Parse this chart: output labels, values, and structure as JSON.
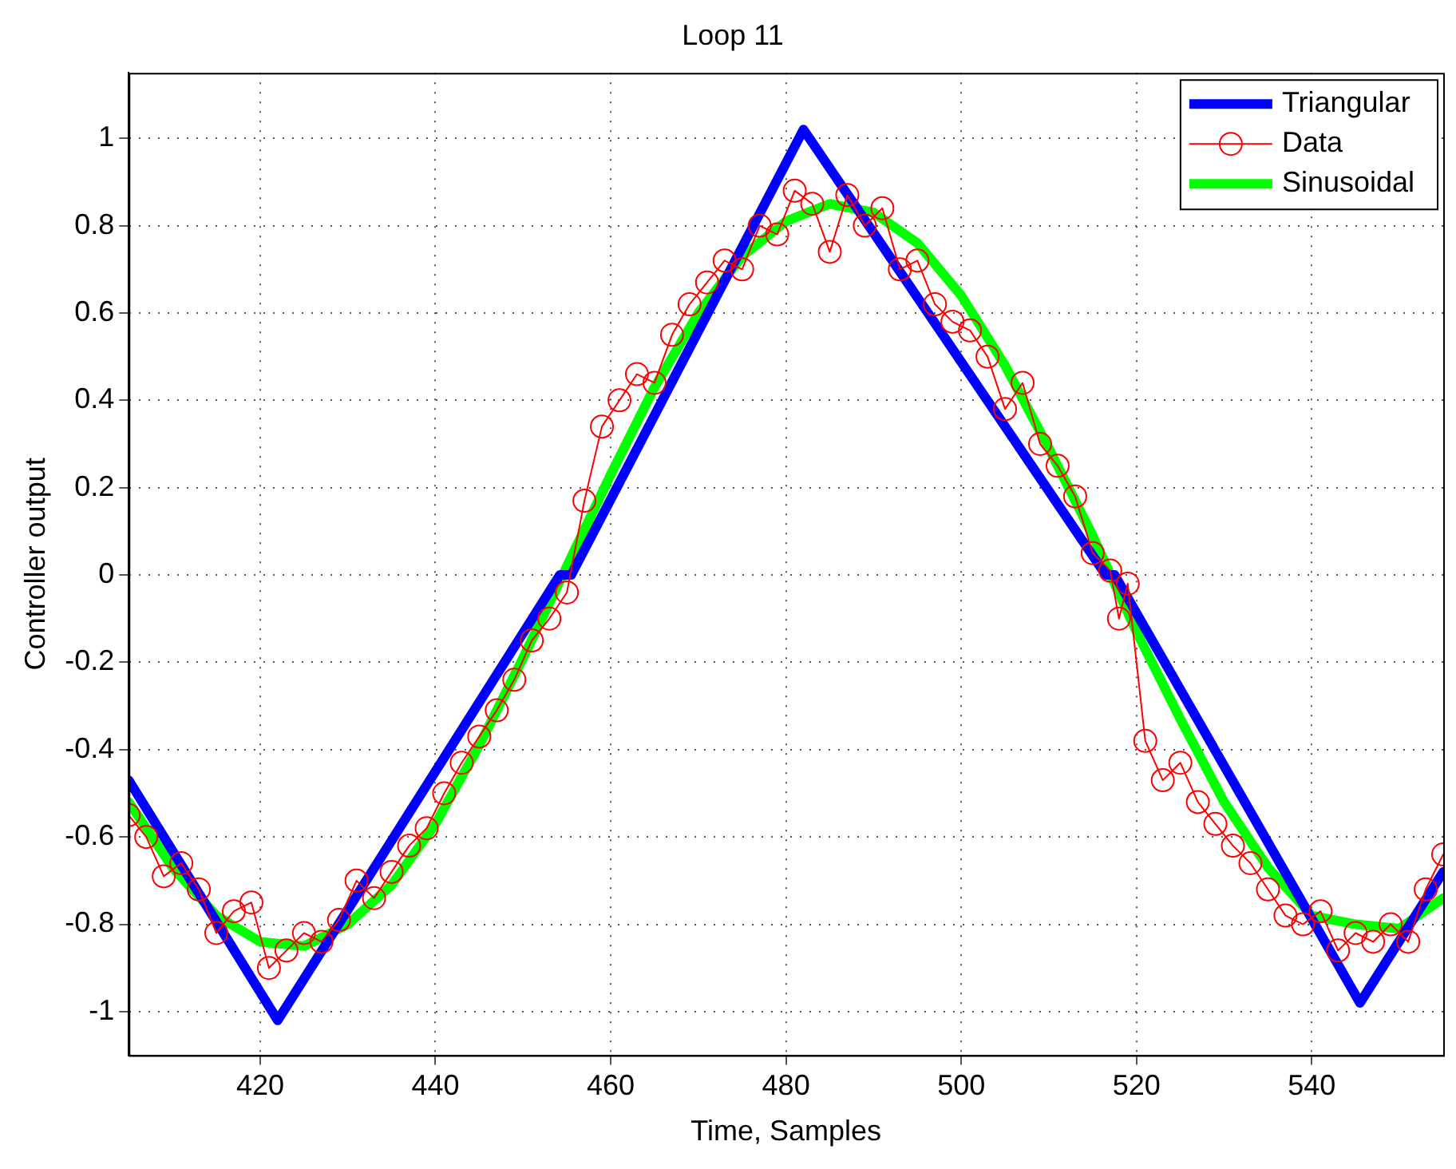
{
  "chart_data": {
    "type": "line",
    "title": "Loop 11",
    "xlabel": "Time, Samples",
    "ylabel": "Controller output",
    "xlim": [
      405,
      555
    ],
    "xticks": [
      420,
      440,
      460,
      480,
      500,
      520,
      540
    ],
    "ylim": [
      -1.1,
      1.15
    ],
    "yticks": [
      -1,
      -0.8,
      -0.6,
      -0.4,
      -0.2,
      0,
      0.2,
      0.4,
      0.6,
      0.8,
      1
    ],
    "grid": true,
    "legend": "top right",
    "line_style": "solid",
    "series": [
      {
        "name": "Triangular",
        "color": "#0000ff",
        "marker": "none",
        "x": [
          405,
          422,
          454.2,
          455.5,
          482,
          516.5,
          517.5,
          545.5,
          555
        ],
        "values": [
          -0.47,
          -1.02,
          0,
          0,
          1.02,
          0,
          0,
          -0.98,
          -0.68
        ]
      },
      {
        "name": "Data",
        "color": "#ff0000",
        "marker": "circle",
        "x": [
          405,
          407,
          409,
          411,
          413,
          415,
          417,
          419,
          421,
          423,
          425,
          427,
          429,
          431,
          433,
          435,
          437,
          439,
          441,
          443,
          445,
          447,
          449,
          451,
          453,
          455,
          457,
          459,
          461,
          463,
          465,
          467,
          469,
          471,
          473,
          475,
          477,
          479,
          481,
          483,
          485,
          487,
          489,
          491,
          493,
          495,
          497,
          499,
          501,
          503,
          505,
          507,
          509,
          511,
          513,
          515,
          517,
          518,
          519,
          521,
          523,
          525,
          527,
          529,
          531,
          533,
          535,
          537,
          539,
          541,
          543,
          545,
          547,
          549,
          551,
          553,
          555
        ],
        "values": [
          -0.55,
          -0.6,
          -0.69,
          -0.66,
          -0.72,
          -0.82,
          -0.77,
          -0.75,
          -0.9,
          -0.86,
          -0.82,
          -0.84,
          -0.79,
          -0.7,
          -0.74,
          -0.68,
          -0.62,
          -0.58,
          -0.5,
          -0.43,
          -0.37,
          -0.31,
          -0.24,
          -0.15,
          -0.1,
          -0.04,
          0.17,
          0.34,
          0.4,
          0.46,
          0.44,
          0.55,
          0.62,
          0.67,
          0.72,
          0.7,
          0.8,
          0.78,
          0.88,
          0.85,
          0.74,
          0.87,
          0.8,
          0.84,
          0.7,
          0.72,
          0.62,
          0.58,
          0.56,
          0.5,
          0.38,
          0.44,
          0.3,
          0.25,
          0.18,
          0.05,
          0.01,
          -0.1,
          -0.02,
          -0.38,
          -0.47,
          -0.43,
          -0.52,
          -0.57,
          -0.62,
          -0.66,
          -0.72,
          -0.78,
          -0.8,
          -0.77,
          -0.86,
          -0.82,
          -0.84,
          -0.8,
          -0.84,
          -0.72,
          -0.64
        ]
      },
      {
        "name": "Sinusoidal",
        "color": "#00ff00",
        "marker": "none",
        "x": [
          405,
          410,
          415,
          420,
          425,
          430,
          435,
          440,
          445,
          450,
          455,
          460,
          465,
          470,
          475,
          480,
          485,
          490,
          495,
          500,
          505,
          510,
          515,
          520,
          525,
          530,
          535,
          540,
          545,
          550,
          555
        ],
        "values": [
          -0.52,
          -0.67,
          -0.78,
          -0.84,
          -0.85,
          -0.8,
          -0.71,
          -0.57,
          -0.39,
          -0.19,
          0.02,
          0.23,
          0.43,
          0.6,
          0.73,
          0.81,
          0.85,
          0.83,
          0.76,
          0.64,
          0.48,
          0.29,
          0.09,
          -0.13,
          -0.33,
          -0.52,
          -0.67,
          -0.78,
          -0.8,
          -0.81,
          -0.74
        ]
      }
    ]
  }
}
